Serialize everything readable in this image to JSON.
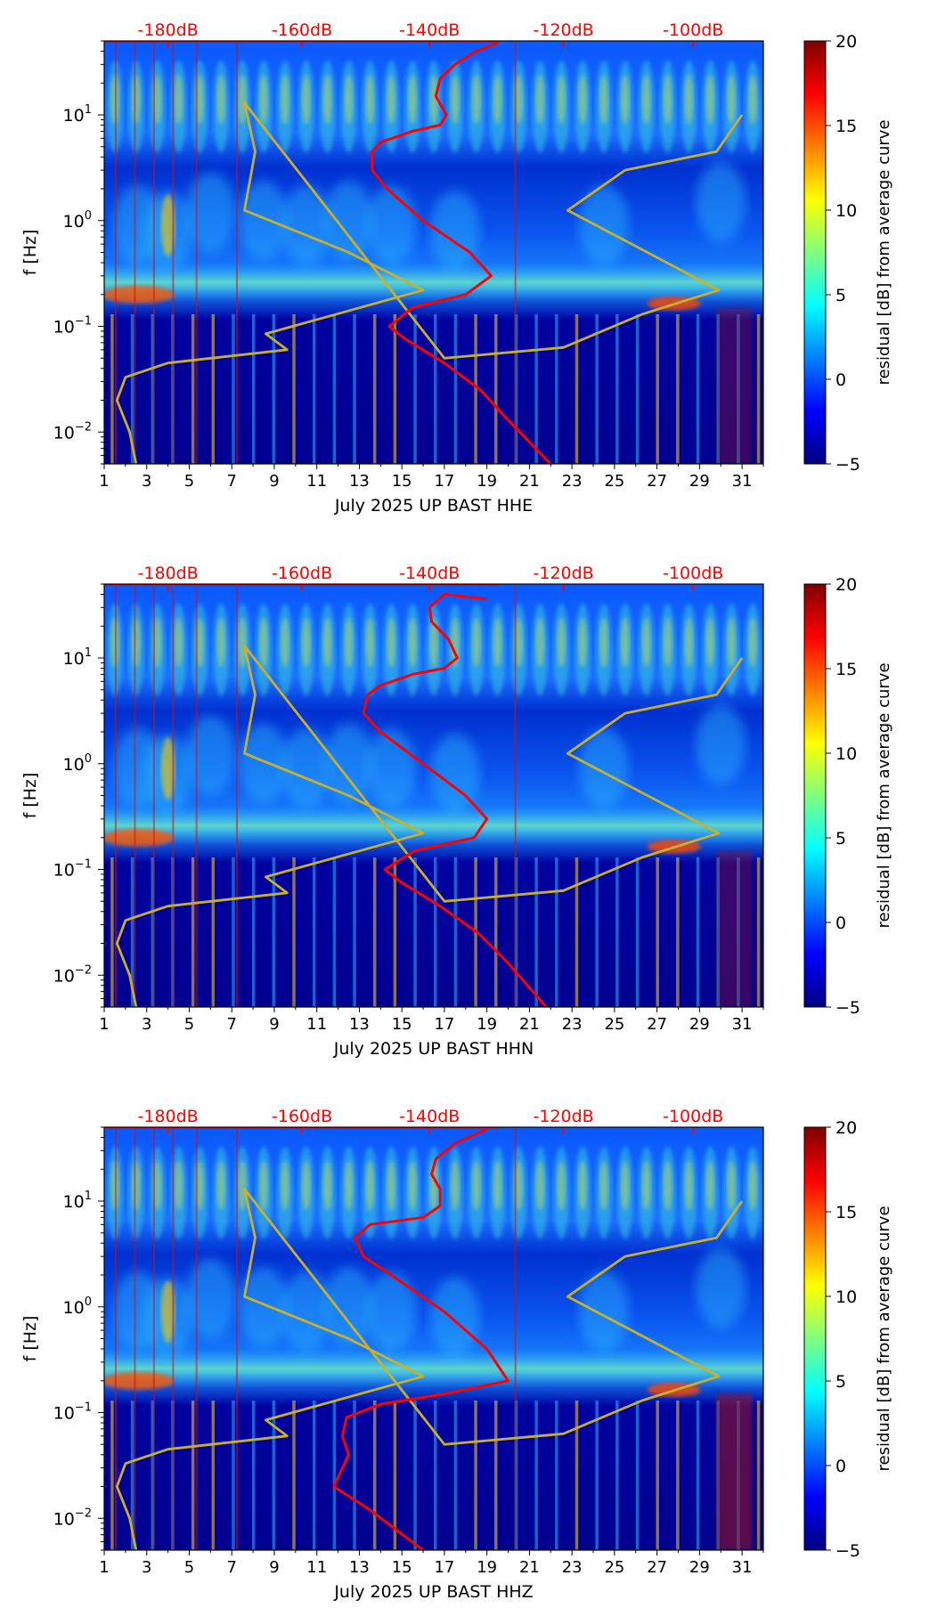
{
  "colors": {
    "nlnm_curve": "#c9b02a",
    "median_curve": "#ff0000",
    "top_scale": "#ff0000",
    "jet": [
      "#00007f",
      "#0000ff",
      "#007fff",
      "#00ffff",
      "#7fff7f",
      "#ffff00",
      "#ff7f00",
      "#ff0000",
      "#7f0000"
    ]
  },
  "chart_data": [
    {
      "type": "heatmap",
      "xlabel": "July 2025 UP BAST  HHE",
      "ylabel": "f [Hz]",
      "colorbar_label": "residual [dB] from average curve",
      "x_ticks": [
        "1",
        "3",
        "5",
        "7",
        "9",
        "11",
        "13",
        "15",
        "17",
        "19",
        "21",
        "23",
        "25",
        "27",
        "29",
        "31"
      ],
      "x_range": [
        1,
        32
      ],
      "y_scale": "log",
      "y_range": [
        0.005,
        50
      ],
      "y_ticks": [
        {
          "base": "10",
          "exp": "1"
        },
        {
          "base": "10",
          "exp": "0"
        },
        {
          "base": "10",
          "exp": "−1"
        },
        {
          "base": "10",
          "exp": "−2"
        }
      ],
      "colorbar_ticks": [
        "20",
        "15",
        "10",
        "5",
        "0",
        "−5"
      ],
      "colorbar_range": [
        -5,
        20
      ],
      "top_scale_labels": [
        "-180dB",
        "-160dB",
        "-140dB",
        "-120dB",
        "-100dB"
      ],
      "series": [
        {
          "role": "nlnm",
          "points": [
            [
              2.5,
              0.005
            ],
            [
              2.2,
              0.01
            ],
            [
              1.6,
              0.02
            ],
            [
              2.0,
              0.033
            ],
            [
              4.0,
              0.045
            ],
            [
              9.6,
              0.06
            ],
            [
              8.6,
              0.085
            ],
            [
              16.0,
              0.22
            ],
            [
              12.5,
              0.5
            ],
            [
              7.6,
              1.25
            ],
            [
              8.1,
              4.5
            ],
            [
              7.6,
              13
            ],
            [
              17.0,
              0.05
            ],
            [
              22.6,
              0.063
            ],
            [
              26.3,
              0.13
            ],
            [
              29.9,
              0.22
            ],
            [
              22.8,
              1.25
            ],
            [
              25.5,
              3.0
            ],
            [
              29.8,
              4.5
            ],
            [
              31.0,
              10
            ]
          ]
        },
        {
          "role": "median",
          "points": [
            [
              22.0,
              0.005
            ],
            [
              20.0,
              0.013
            ],
            [
              18.7,
              0.025
            ],
            [
              17.0,
              0.045
            ],
            [
              15.2,
              0.075
            ],
            [
              14.4,
              0.1
            ],
            [
              15.5,
              0.15
            ],
            [
              18.0,
              0.2
            ],
            [
              19.2,
              0.3
            ],
            [
              18.2,
              0.5
            ],
            [
              16.0,
              1.0
            ],
            [
              14.3,
              2.0
            ],
            [
              13.6,
              3.0
            ],
            [
              13.6,
              4.5
            ],
            [
              14.0,
              5.5
            ],
            [
              15.5,
              7.0
            ],
            [
              16.8,
              8.0
            ],
            [
              17.1,
              10
            ],
            [
              16.6,
              15
            ],
            [
              16.8,
              22
            ],
            [
              17.5,
              30
            ],
            [
              18.5,
              40
            ],
            [
              19.5,
              48
            ]
          ]
        }
      ]
    },
    {
      "type": "heatmap",
      "xlabel": "July 2025 UP BAST  HHN",
      "ylabel": "f [Hz]",
      "colorbar_label": "residual [dB] from average curve",
      "x_ticks": [
        "1",
        "3",
        "5",
        "7",
        "9",
        "11",
        "13",
        "15",
        "17",
        "19",
        "21",
        "23",
        "25",
        "27",
        "29",
        "31"
      ],
      "x_range": [
        1,
        32
      ],
      "y_scale": "log",
      "y_range": [
        0.005,
        50
      ],
      "y_ticks": [
        {
          "base": "10",
          "exp": "1"
        },
        {
          "base": "10",
          "exp": "0"
        },
        {
          "base": "10",
          "exp": "−1"
        },
        {
          "base": "10",
          "exp": "−2"
        }
      ],
      "colorbar_ticks": [
        "20",
        "15",
        "10",
        "5",
        "0",
        "−5"
      ],
      "colorbar_range": [
        -5,
        20
      ],
      "top_scale_labels": [
        "-180dB",
        "-160dB",
        "-140dB",
        "-120dB",
        "-100dB"
      ],
      "series": [
        {
          "role": "nlnm",
          "points": [
            [
              2.5,
              0.005
            ],
            [
              2.2,
              0.01
            ],
            [
              1.6,
              0.02
            ],
            [
              2.0,
              0.033
            ],
            [
              4.0,
              0.045
            ],
            [
              9.6,
              0.06
            ],
            [
              8.6,
              0.085
            ],
            [
              16.0,
              0.22
            ],
            [
              12.5,
              0.5
            ],
            [
              7.6,
              1.25
            ],
            [
              8.1,
              4.5
            ],
            [
              7.6,
              13
            ],
            [
              17.0,
              0.05
            ],
            [
              22.6,
              0.063
            ],
            [
              26.3,
              0.13
            ],
            [
              29.9,
              0.22
            ],
            [
              22.8,
              1.25
            ],
            [
              25.5,
              3.0
            ],
            [
              29.8,
              4.5
            ],
            [
              31.0,
              10
            ]
          ]
        },
        {
          "role": "median",
          "points": [
            [
              21.8,
              0.005
            ],
            [
              20.0,
              0.013
            ],
            [
              18.6,
              0.025
            ],
            [
              16.8,
              0.045
            ],
            [
              15.0,
              0.075
            ],
            [
              14.2,
              0.1
            ],
            [
              15.6,
              0.15
            ],
            [
              18.4,
              0.2
            ],
            [
              19.0,
              0.3
            ],
            [
              18.0,
              0.5
            ],
            [
              16.0,
              1.0
            ],
            [
              14.0,
              2.0
            ],
            [
              13.2,
              3.0
            ],
            [
              13.4,
              4.5
            ],
            [
              14.0,
              5.5
            ],
            [
              15.5,
              7.0
            ],
            [
              17.0,
              8.0
            ],
            [
              17.6,
              10
            ],
            [
              17.2,
              15
            ],
            [
              16.4,
              22
            ],
            [
              16.3,
              30
            ],
            [
              17.0,
              40
            ],
            [
              19.0,
              36
            ]
          ]
        }
      ]
    },
    {
      "type": "heatmap",
      "xlabel": "July 2025 UP BAST  HHZ",
      "ylabel": "f [Hz]",
      "colorbar_label": "residual [dB] from average curve",
      "x_ticks": [
        "1",
        "3",
        "5",
        "7",
        "9",
        "11",
        "13",
        "15",
        "17",
        "19",
        "21",
        "23",
        "25",
        "27",
        "29",
        "31"
      ],
      "x_range": [
        1,
        32
      ],
      "y_scale": "log",
      "y_range": [
        0.005,
        50
      ],
      "y_ticks": [
        {
          "base": "10",
          "exp": "1"
        },
        {
          "base": "10",
          "exp": "0"
        },
        {
          "base": "10",
          "exp": "−1"
        },
        {
          "base": "10",
          "exp": "−2"
        }
      ],
      "colorbar_ticks": [
        "20",
        "15",
        "10",
        "5",
        "0",
        "−5"
      ],
      "colorbar_range": [
        -5,
        20
      ],
      "top_scale_labels": [
        "-180dB",
        "-160dB",
        "-140dB",
        "-120dB",
        "-100dB"
      ],
      "series": [
        {
          "role": "nlnm",
          "points": [
            [
              2.5,
              0.005
            ],
            [
              2.2,
              0.01
            ],
            [
              1.6,
              0.02
            ],
            [
              2.0,
              0.033
            ],
            [
              4.0,
              0.045
            ],
            [
              9.6,
              0.06
            ],
            [
              8.6,
              0.085
            ],
            [
              16.0,
              0.22
            ],
            [
              12.5,
              0.5
            ],
            [
              7.6,
              1.25
            ],
            [
              8.1,
              4.5
            ],
            [
              7.6,
              13
            ],
            [
              17.0,
              0.05
            ],
            [
              22.6,
              0.063
            ],
            [
              26.3,
              0.13
            ],
            [
              29.9,
              0.22
            ],
            [
              22.8,
              1.25
            ],
            [
              25.5,
              3.0
            ],
            [
              29.8,
              4.5
            ],
            [
              31.0,
              10
            ]
          ]
        },
        {
          "role": "median",
          "points": [
            [
              16.0,
              0.005
            ],
            [
              13.5,
              0.012
            ],
            [
              11.8,
              0.02
            ],
            [
              12.5,
              0.04
            ],
            [
              12.2,
              0.06
            ],
            [
              12.4,
              0.09
            ],
            [
              14.0,
              0.12
            ],
            [
              17.0,
              0.15
            ],
            [
              20.0,
              0.2
            ],
            [
              19.0,
              0.4
            ],
            [
              17.0,
              0.9
            ],
            [
              14.5,
              2.0
            ],
            [
              13.2,
              3.0
            ],
            [
              12.8,
              4.5
            ],
            [
              13.5,
              6.0
            ],
            [
              16.0,
              7.0
            ],
            [
              16.8,
              9.0
            ],
            [
              16.8,
              13
            ],
            [
              16.4,
              18
            ],
            [
              16.6,
              25
            ],
            [
              17.5,
              35
            ],
            [
              19.0,
              48
            ]
          ]
        }
      ]
    }
  ]
}
